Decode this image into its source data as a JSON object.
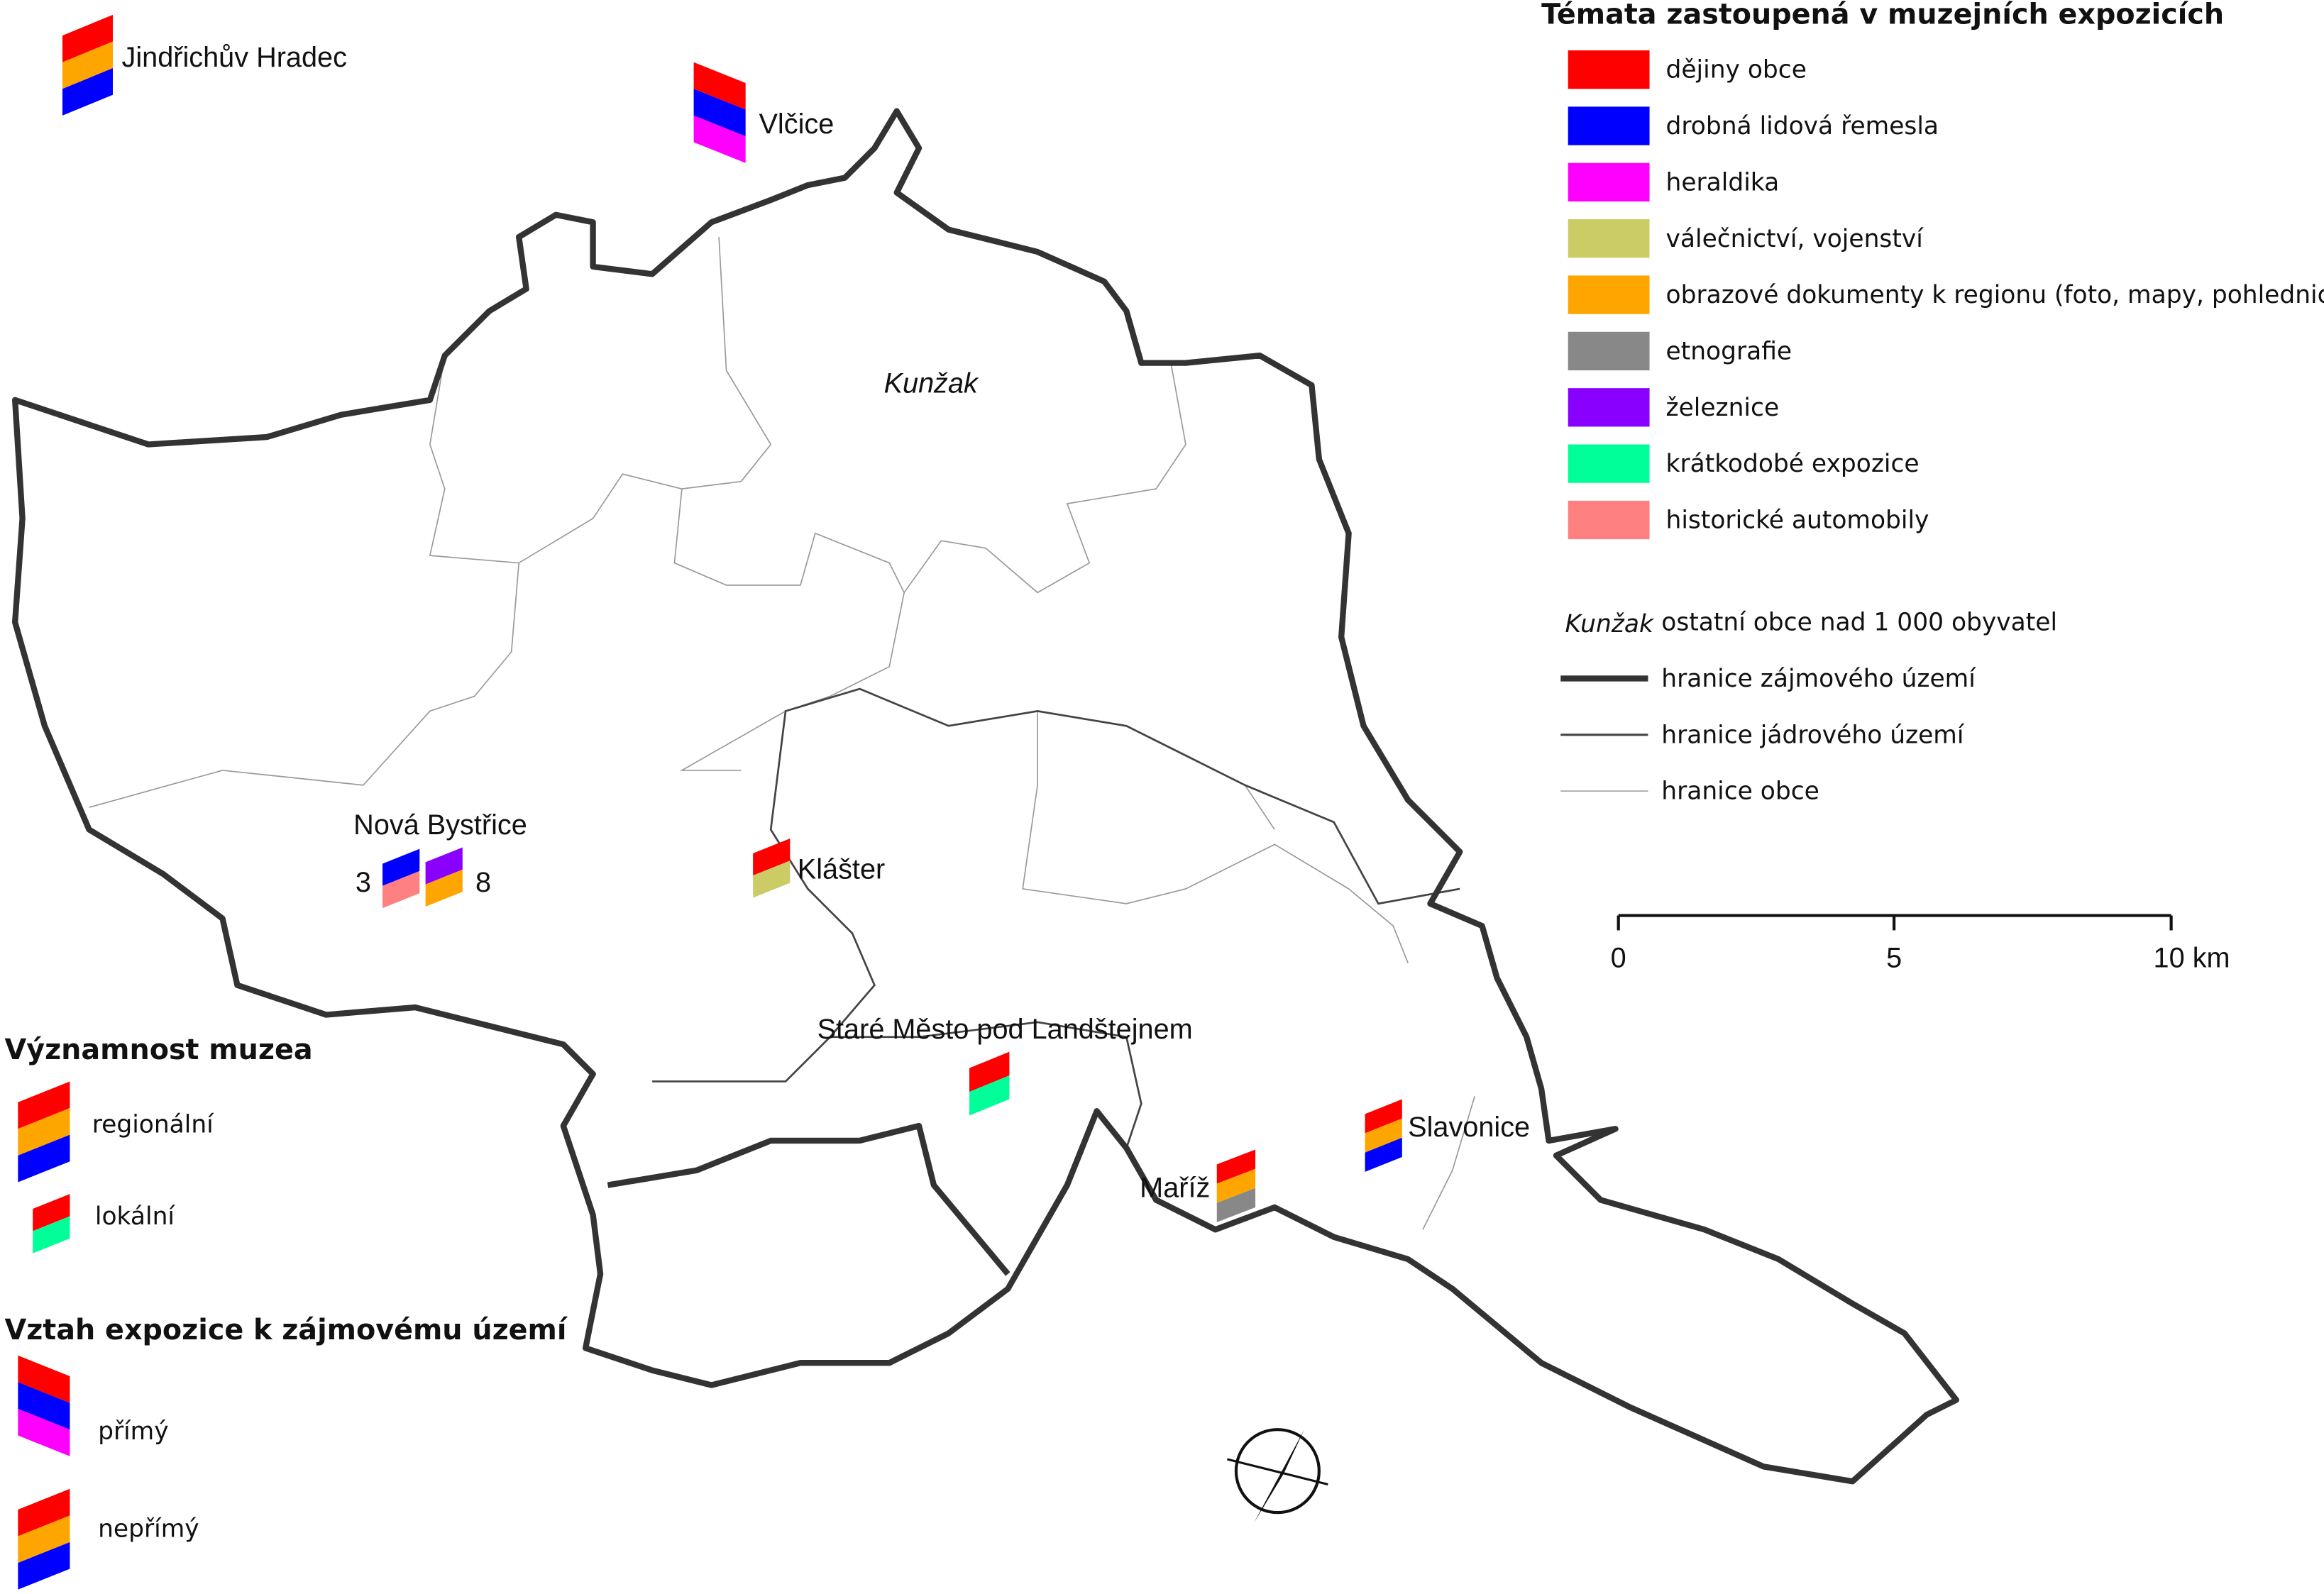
{
  "towns": [
    {
      "name": "Jindřichův Hradec",
      "symbols": [
        {
          "stripes": [
            "#ff0000",
            "#ffa500",
            "#0000ff"
          ]
        }
      ]
    },
    {
      "name": "Vlčice",
      "symbols": [
        {
          "stripes": [
            "#ff0000",
            "#0000ff",
            "#ff00ff"
          ]
        }
      ]
    },
    {
      "name": "Nová Bystřice",
      "symbols": [
        {
          "stripes": [
            "#0000ff",
            "#ff8080"
          ],
          "count": 3
        },
        {
          "stripes": [
            "#8a00ff",
            "#ffa500"
          ],
          "count": 8
        }
      ]
    },
    {
      "name": "Klášter",
      "symbols": [
        {
          "stripes": [
            "#ff0000",
            "#cccc66"
          ]
        }
      ]
    },
    {
      "name": "Staré Město pod Landštejnem",
      "symbols": [
        {
          "stripes": [
            "#ff0000",
            "#00ff99"
          ]
        }
      ]
    },
    {
      "name": "Maříž",
      "symbols": [
        {
          "stripes": [
            "#ff0000",
            "#ffa500",
            "#888888"
          ]
        }
      ]
    },
    {
      "name": "Slavonice",
      "symbols": [
        {
          "stripes": [
            "#ff0000",
            "#ffa500",
            "#0000ff"
          ]
        }
      ]
    }
  ],
  "other_town": "Kunžak",
  "themes": {
    "title": "Témata zastoupená v muzejních expozicích",
    "items": [
      {
        "label": "dějiny obce",
        "color": "#ff0000"
      },
      {
        "label": "drobná lidová řemesla",
        "color": "#0000ff"
      },
      {
        "label": "heraldika",
        "color": "#ff00ff"
      },
      {
        "label": "válečnictví, vojenství",
        "color": "#cccc66"
      },
      {
        "label": "obrazové dokumenty k regionu (foto, mapy, pohlednice)",
        "color": "#ffa500"
      },
      {
        "label": "etnografie",
        "color": "#888888"
      },
      {
        "label": "železnice",
        "color": "#8a00ff"
      },
      {
        "label": "krátkodobé expozice",
        "color": "#00ff99"
      },
      {
        "label": "historické automobily",
        "color": "#ff8080"
      }
    ]
  },
  "boundaries": {
    "town_label": "ostatní obce nad 1 000 obyvatel",
    "lines": [
      {
        "label": "hranice zájmového území"
      },
      {
        "label": "hranice jádrového území"
      },
      {
        "label": "hranice obce"
      }
    ]
  },
  "scale": [
    "0",
    "5",
    "10 km"
  ],
  "significance": {
    "title": "Významnost muzea",
    "items": [
      {
        "label": "regionální",
        "stripes": [
          "#ff0000",
          "#ffa500",
          "#0000ff"
        ]
      },
      {
        "label": "lokální",
        "stripes": [
          "#ff0000",
          "#00ff99"
        ]
      }
    ]
  },
  "relation": {
    "title": "Vztah expozice k zájmovému území",
    "items": [
      {
        "label": "přímý",
        "stripes": [
          "#ff0000",
          "#0000ff",
          "#ff00ff"
        ]
      },
      {
        "label": "nepřímý",
        "stripes": [
          "#ff0000",
          "#ffa500",
          "#0000ff"
        ]
      }
    ]
  }
}
